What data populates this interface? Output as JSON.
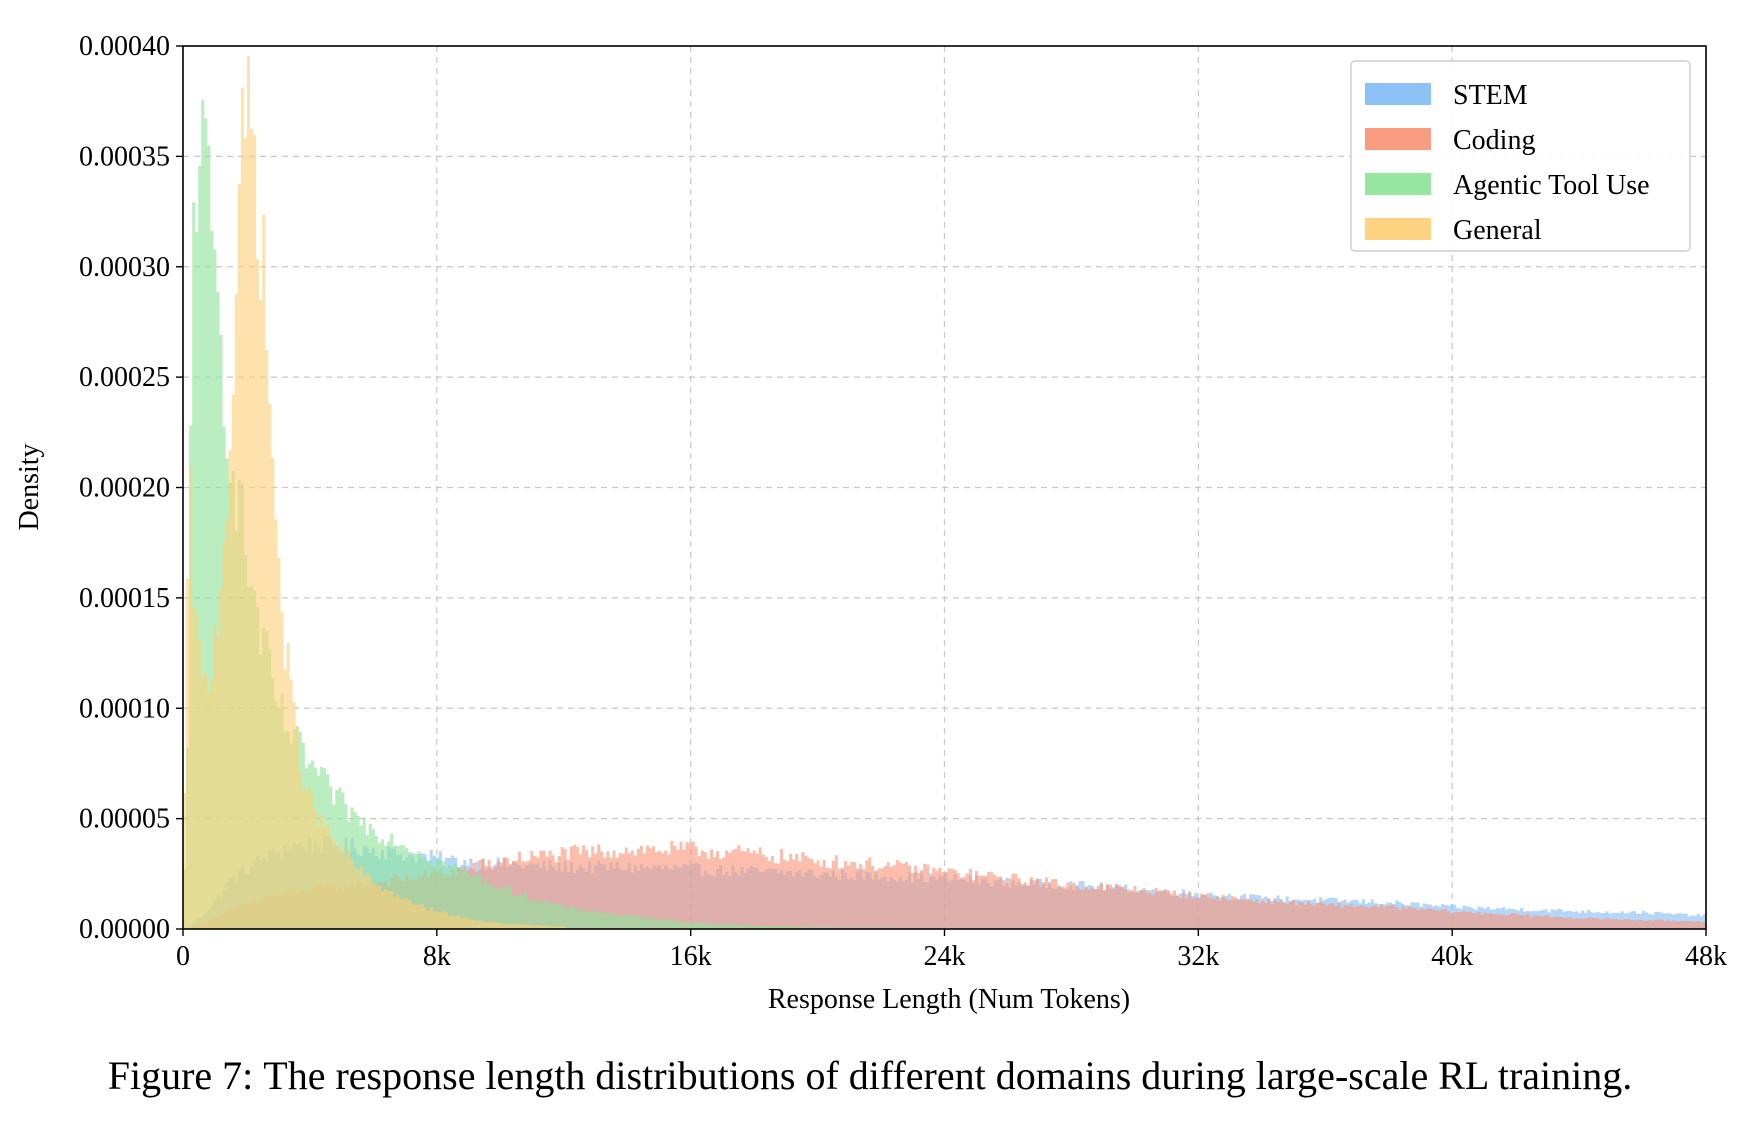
{
  "figure": {
    "caption_number": "Figure 7:",
    "caption_text": "The response length distributions of different domains during large-scale RL training."
  },
  "chart_data": {
    "type": "histogram",
    "xlabel": "Response Length (Num Tokens)",
    "ylabel": "Density",
    "xlim": [
      0,
      48000
    ],
    "ylim": [
      0,
      0.0004
    ],
    "x_ticks": [
      0,
      8000,
      16000,
      24000,
      32000,
      40000,
      48000
    ],
    "x_tick_labels": [
      "0",
      "8k",
      "16k",
      "24k",
      "32k",
      "40k",
      "48k"
    ],
    "y_ticks": [
      0,
      5e-05,
      0.0001,
      0.00015,
      0.0002,
      0.00025,
      0.0003,
      0.00035,
      0.0004
    ],
    "y_tick_labels": [
      "0.00000",
      "0.00005",
      "0.00010",
      "0.00015",
      "0.00020",
      "0.00025",
      "0.00030",
      "0.00035",
      "0.00040"
    ],
    "grid": true,
    "legend_position": "top-right",
    "series": [
      {
        "name": "STEM",
        "color": "#86bff5",
        "x": [
          250,
          750,
          1500,
          2500,
          3500,
          4500,
          5500,
          6500,
          7500,
          8500,
          9500,
          10500,
          12000,
          14000,
          16000,
          18000,
          20000,
          22000,
          24000,
          26000,
          28000,
          30000,
          32000,
          34000,
          36000,
          38000,
          40000,
          42000,
          44000,
          46000,
          48000
        ],
        "density": [
          1.5e-06,
          8e-06,
          2.2e-05,
          3.2e-05,
          3.8e-05,
          3.8e-05,
          3.7e-05,
          3.5e-05,
          3.3e-05,
          3.1e-05,
          3e-05,
          2.9e-05,
          2.8e-05,
          2.8e-05,
          2.7e-05,
          2.6e-05,
          2.5e-05,
          2.4e-05,
          2.3e-05,
          2.1e-05,
          2e-05,
          1.8e-05,
          1.6e-05,
          1.4e-05,
          1.3e-05,
          1.2e-05,
          1e-05,
          9e-06,
          8e-06,
          7.5e-06,
          6e-06
        ]
      },
      {
        "name": "Coding",
        "color": "#f9967a",
        "x": [
          250,
          750,
          1500,
          2500,
          3500,
          4500,
          5500,
          6500,
          7500,
          8500,
          9500,
          10500,
          12000,
          14000,
          16000,
          18000,
          20000,
          22000,
          24000,
          26000,
          28000,
          30000,
          32000,
          34000,
          36000,
          38000,
          40000,
          42000,
          44000,
          46000,
          48000
        ],
        "density": [
          1e-06,
          3e-06,
          9e-06,
          1.4e-05,
          1.7e-05,
          1.9e-05,
          2e-05,
          2.2e-05,
          2.4e-05,
          2.6e-05,
          2.9e-05,
          3.2e-05,
          3.4e-05,
          3.6e-05,
          3.6e-05,
          3.4e-05,
          3.1e-05,
          2.9e-05,
          2.6e-05,
          2.3e-05,
          2e-05,
          1.8e-05,
          1.5e-05,
          1.3e-05,
          1.1e-05,
          1e-05,
          8e-06,
          6.5e-06,
          5e-06,
          4e-06,
          3.5e-06
        ]
      },
      {
        "name": "Agentic Tool Use",
        "color": "#90e49b",
        "x": [
          150,
          300,
          500,
          700,
          900,
          1100,
          1300,
          1500,
          1800,
          2100,
          2500,
          3000,
          3500,
          4000,
          4500,
          5000,
          5500,
          6000,
          7000,
          8000,
          9000,
          10000,
          11000,
          12000,
          14000,
          16000,
          18000,
          20000,
          25000,
          30000
        ],
        "density": [
          8e-05,
          0.00032,
          0.00036,
          0.00034,
          0.00031,
          0.00028,
          0.00025,
          0.00022,
          0.00019,
          0.00016,
          0.00013,
          0.0001,
          8.5e-05,
          7.5e-05,
          6.5e-05,
          5.7e-05,
          5e-05,
          4.5e-05,
          3.8e-05,
          3.1e-05,
          2.5e-05,
          1.9e-05,
          1.4e-05,
          1e-05,
          6e-06,
          3e-06,
          1.5e-06,
          8e-07,
          3e-07,
          1e-07
        ]
      },
      {
        "name": "General",
        "color": "#fdd17b",
        "x": [
          100,
          200,
          300,
          400,
          600,
          800,
          1000,
          1200,
          1400,
          1600,
          1800,
          2000,
          2200,
          2400,
          2600,
          2800,
          3000,
          3200,
          3500,
          3800,
          4100,
          4500,
          5000,
          5500,
          6000,
          7000,
          8000,
          9000,
          10000,
          12000
        ],
        "density": [
          0.00012,
          0.0002,
          0.00017,
          0.00014,
          0.00011,
          0.00011,
          0.00013,
          0.00016,
          0.0002,
          0.00026,
          0.00033,
          0.00037,
          0.00036,
          0.00033,
          0.00028,
          0.00022,
          0.00017,
          0.00013,
          9.5e-05,
          7e-05,
          5.5e-05,
          4.5e-05,
          3.6e-05,
          2.8e-05,
          2.1e-05,
          1.3e-05,
          8e-06,
          4.5e-06,
          2.5e-06,
          1e-06
        ]
      }
    ]
  }
}
